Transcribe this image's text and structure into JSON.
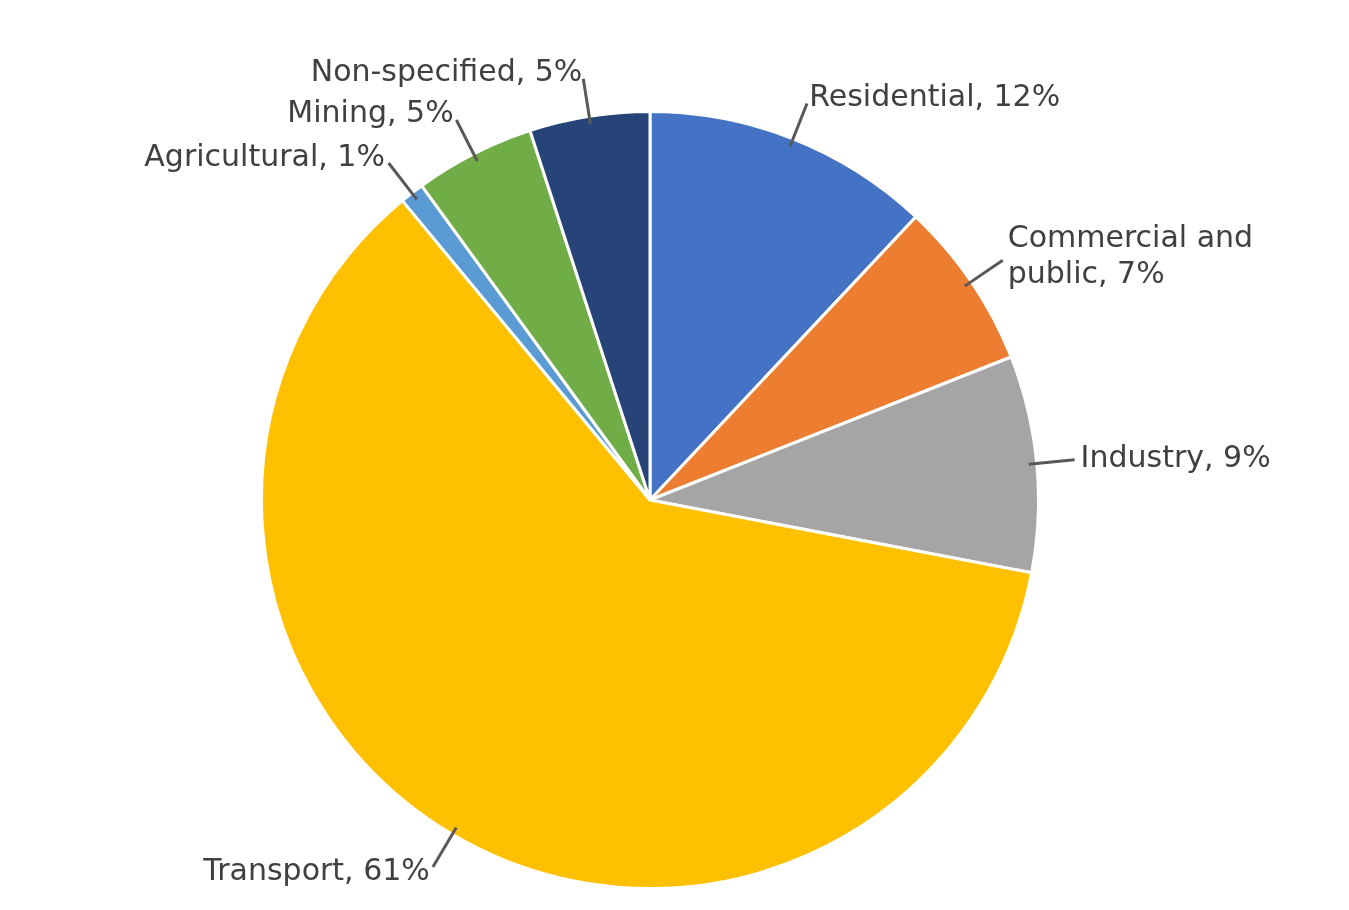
{
  "chart_data": {
    "type": "pie",
    "categories": [
      "Residential",
      "Commercial and public",
      "Industry",
      "Transport",
      "Agricultural",
      "Mining",
      "Non-specified"
    ],
    "values": [
      12,
      7,
      9,
      61,
      1,
      5,
      5
    ],
    "value_labels": [
      "12%",
      "7%",
      "9%",
      "61%",
      "1%",
      "5%",
      "5%"
    ],
    "colors": [
      "#4472c4",
      "#ed7d31",
      "#a5a5a5",
      "#ffc000",
      "#5b9bd5",
      "#70ad47",
      "#264478"
    ],
    "legend": false
  }
}
